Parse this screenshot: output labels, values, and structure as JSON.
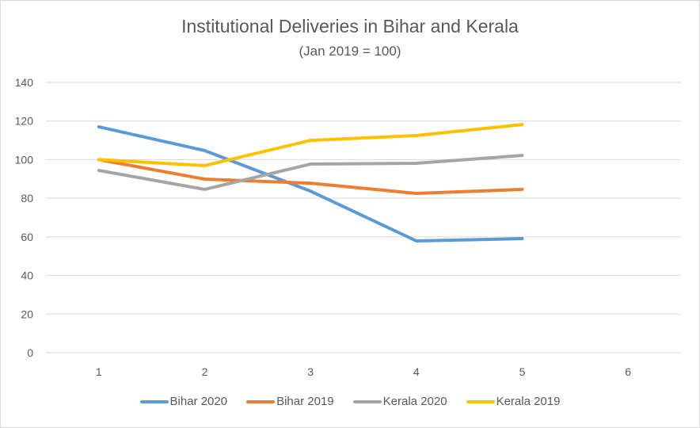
{
  "chart_data": {
    "type": "line",
    "title": "Institutional Deliveries in Bihar and Kerala",
    "subtitle": "(Jan 2019 = 100)",
    "xlabel": "",
    "ylabel": "",
    "categories": [
      "1",
      "2",
      "3",
      "4",
      "5",
      "6"
    ],
    "ylim": [
      0,
      140
    ],
    "yticks": [
      0,
      20,
      40,
      60,
      80,
      100,
      120,
      140
    ],
    "grid": true,
    "legend_position": "bottom",
    "series": [
      {
        "name": "Bihar 2020",
        "color": "#5b9bd5",
        "values": [
          117,
          104.7,
          83.7,
          57.9,
          59.1,
          null
        ]
      },
      {
        "name": "Bihar 2019",
        "color": "#ed7d31",
        "values": [
          100,
          89.9,
          87.8,
          82.5,
          84.6,
          null
        ]
      },
      {
        "name": "Kerala 2020",
        "color": "#a5a5a5",
        "values": [
          94.4,
          84.6,
          97.7,
          98.1,
          102.2,
          null
        ]
      },
      {
        "name": "Kerala 2019",
        "color": "#ffc000",
        "values": [
          100,
          96.9,
          110,
          112.5,
          118.2,
          null
        ]
      }
    ]
  }
}
